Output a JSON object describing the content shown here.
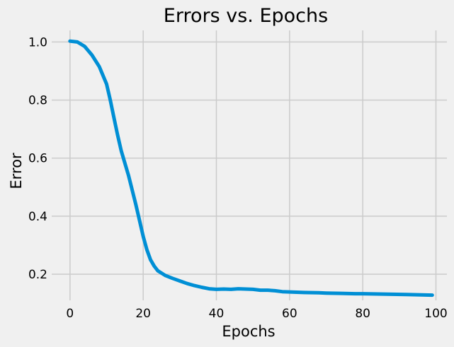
{
  "chart_data": {
    "type": "line",
    "title": "Errors vs. Epochs",
    "xlabel": "Epochs",
    "ylabel": "Error",
    "xlim": [
      -5,
      103
    ],
    "ylim": [
      0.11,
      1.04
    ],
    "xticks": [
      0,
      20,
      40,
      60,
      80,
      100
    ],
    "yticks": [
      0.2,
      0.4,
      0.6,
      0.8,
      1.0
    ],
    "xtick_labels": [
      "0",
      "20",
      "40",
      "60",
      "80",
      "100"
    ],
    "ytick_labels": [
      "0.2",
      "0.4",
      "0.6",
      "0.8",
      "1.0"
    ],
    "grid": true,
    "background": "#f0f0f0",
    "series": [
      {
        "color": "#008fd5",
        "x": [
          0,
          2,
          4,
          6,
          8,
          10,
          11,
          12,
          13,
          14,
          16,
          18,
          19,
          20,
          21,
          22,
          23,
          24,
          26,
          28,
          30,
          32,
          34,
          36,
          38,
          40,
          42,
          44,
          46,
          48,
          50,
          52,
          54,
          56,
          58,
          60,
          64,
          68,
          70,
          74,
          78,
          80,
          84,
          88,
          92,
          96,
          99
        ],
        "y": [
          1.003,
          1.0,
          0.985,
          0.955,
          0.915,
          0.855,
          0.8,
          0.74,
          0.68,
          0.625,
          0.54,
          0.44,
          0.385,
          0.33,
          0.285,
          0.25,
          0.228,
          0.212,
          0.196,
          0.186,
          0.177,
          0.168,
          0.161,
          0.155,
          0.15,
          0.148,
          0.149,
          0.148,
          0.15,
          0.149,
          0.148,
          0.145,
          0.145,
          0.143,
          0.14,
          0.139,
          0.137,
          0.136,
          0.135,
          0.134,
          0.133,
          0.133,
          0.132,
          0.131,
          0.13,
          0.129,
          0.128
        ]
      }
    ]
  }
}
